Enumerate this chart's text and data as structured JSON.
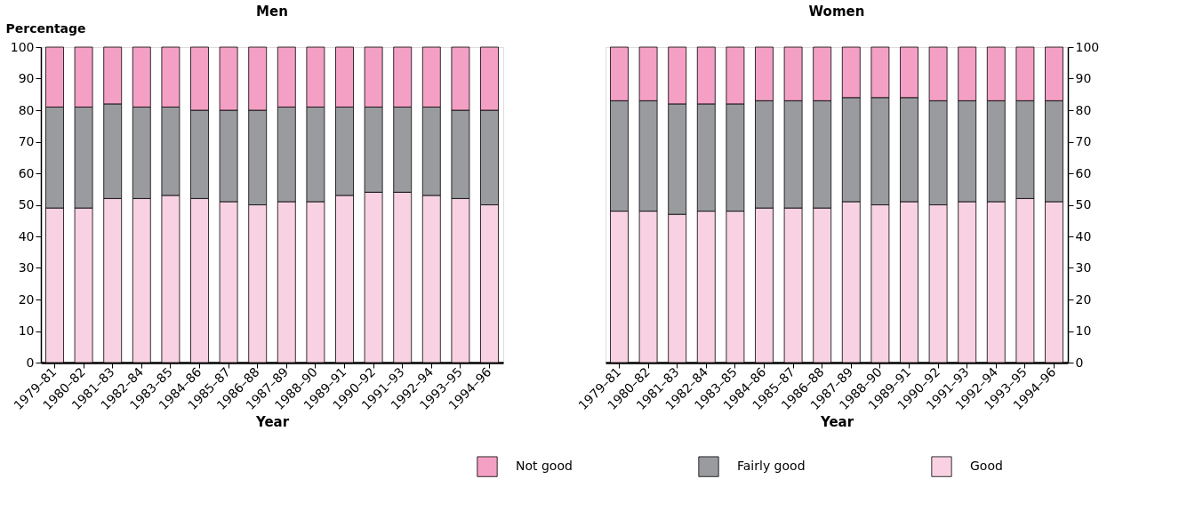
{
  "chart_data": [
    {
      "type": "bar",
      "stacked": true,
      "title": "Men",
      "xlabel": "Year",
      "ylabel": "Percentage",
      "legend": "bottom",
      "grid": false,
      "ylim": [
        0,
        100
      ],
      "yticks": [
        0,
        10,
        20,
        30,
        40,
        50,
        60,
        70,
        80,
        90,
        100
      ],
      "categories": [
        "1979–81",
        "1980–82",
        "1981–83",
        "1982–84",
        "1983–85",
        "1984–86",
        "1985–87",
        "1986–88",
        "1987–89",
        "1988–90",
        "1989–91",
        "1990–92",
        "1991–93",
        "1992–94",
        "1993–95",
        "1994–96"
      ],
      "series": [
        {
          "name": "Good",
          "color": "#f8d2e2",
          "values": [
            49,
            49,
            52,
            52,
            53,
            52,
            51,
            50,
            51,
            51,
            53,
            54,
            54,
            53,
            52,
            50
          ]
        },
        {
          "name": "Fairly good",
          "color": "#9a9b9f",
          "values": [
            32,
            32,
            30,
            29,
            28,
            28,
            29,
            30,
            30,
            30,
            28,
            27,
            27,
            28,
            28,
            30
          ]
        },
        {
          "name": "Not good",
          "color": "#f4a0c5",
          "values": [
            19,
            19,
            18,
            19,
            19,
            20,
            20,
            20,
            19,
            19,
            19,
            19,
            19,
            19,
            20,
            20
          ]
        }
      ]
    },
    {
      "type": "bar",
      "stacked": true,
      "title": "Women",
      "xlabel": "Year",
      "legend": "bottom",
      "grid": false,
      "ylim": [
        0,
        100
      ],
      "yticks": [
        0,
        10,
        20,
        30,
        40,
        50,
        60,
        70,
        80,
        90,
        100
      ],
      "categories": [
        "1979–81",
        "1980–82",
        "1981–83",
        "1982–84",
        "1983–85",
        "1984–86",
        "1985–87",
        "1986–88",
        "1987–89",
        "1988–90",
        "1989–91",
        "1990–92",
        "1991–93",
        "1992–94",
        "1993–95",
        "1994–96"
      ],
      "series": [
        {
          "name": "Good",
          "color": "#f8d2e2",
          "values": [
            48,
            48,
            47,
            48,
            48,
            49,
            49,
            49,
            51,
            50,
            51,
            50,
            51,
            51,
            52,
            51
          ]
        },
        {
          "name": "Fairly good",
          "color": "#9a9b9f",
          "values": [
            35,
            35,
            35,
            34,
            34,
            34,
            34,
            34,
            33,
            34,
            33,
            33,
            32,
            32,
            31,
            32
          ]
        },
        {
          "name": "Not good",
          "color": "#f4a0c5",
          "values": [
            17,
            17,
            18,
            18,
            18,
            17,
            17,
            17,
            16,
            16,
            16,
            17,
            17,
            17,
            17,
            17
          ]
        }
      ]
    }
  ]
}
